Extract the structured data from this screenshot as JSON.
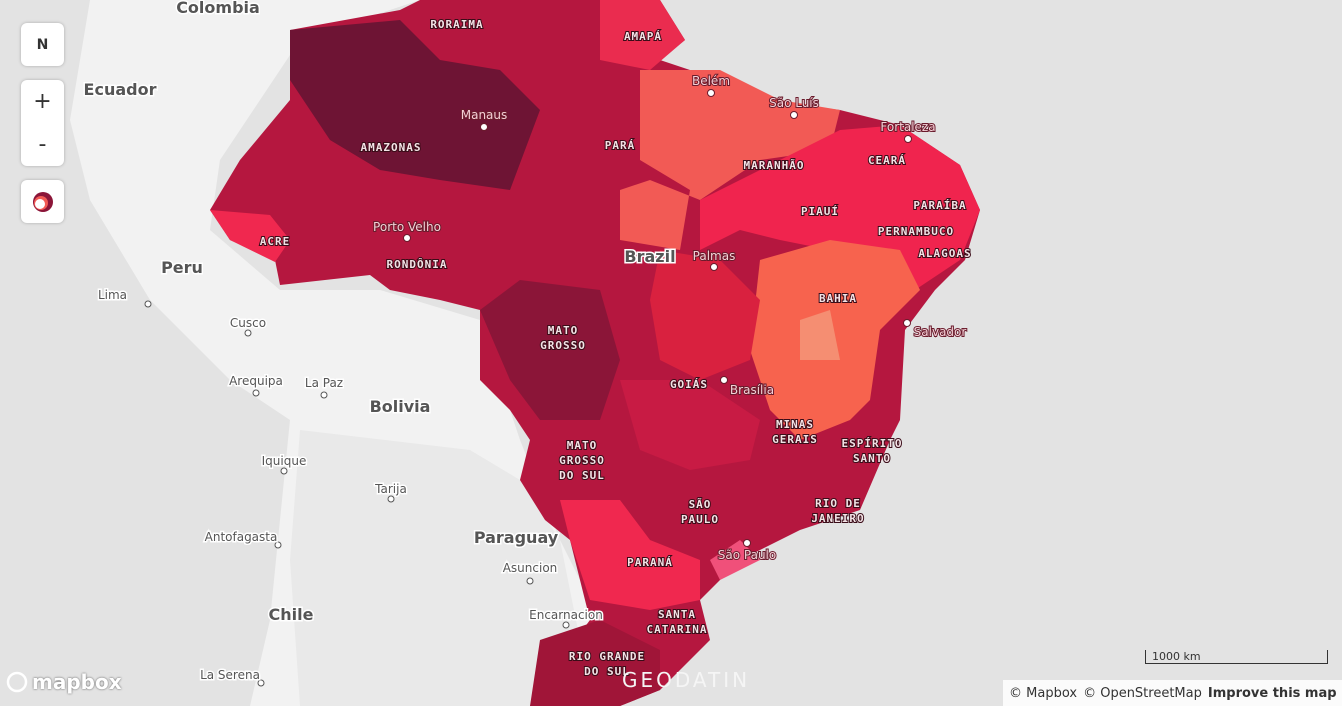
{
  "controls": {
    "compass": "N",
    "zoom_in": "+",
    "zoom_out": "-"
  },
  "countries": [
    "Colombia",
    "Ecuador",
    "Peru",
    "Bolivia",
    "Paraguay",
    "Chile",
    "Brazil"
  ],
  "cities": [
    "Lima",
    "Cusco",
    "Arequipa",
    "La Paz",
    "Iquique",
    "Tarija",
    "Antofagasta",
    "Asuncion",
    "Encarnacion",
    "La Serena"
  ],
  "brazil_cities": [
    "Manaus",
    "Porto Velho",
    "Belém",
    "São Luís",
    "Fortaleza",
    "Palmas",
    "Brasília",
    "Salvador",
    "São Paulo"
  ],
  "states": [
    {
      "lines": [
        "RORAIMA"
      ]
    },
    {
      "lines": [
        "AMAPÁ"
      ]
    },
    {
      "lines": [
        "AMAZONAS"
      ]
    },
    {
      "lines": [
        "PARÁ"
      ]
    },
    {
      "lines": [
        "MARANHÃO"
      ]
    },
    {
      "lines": [
        "CEARÁ"
      ]
    },
    {
      "lines": [
        "PIAUÍ"
      ]
    },
    {
      "lines": [
        "PARAÍBA"
      ]
    },
    {
      "lines": [
        "PERNAMBUCO"
      ]
    },
    {
      "lines": [
        "ACRE"
      ]
    },
    {
      "lines": [
        "RONDÔNIA"
      ]
    },
    {
      "lines": [
        "ALAGOAS"
      ]
    },
    {
      "lines": [
        "BAHIA"
      ]
    },
    {
      "lines": [
        "MATO",
        "GROSSO"
      ]
    },
    {
      "lines": [
        "GOIÁS"
      ]
    },
    {
      "lines": [
        "MINAS",
        "GERAIS"
      ]
    },
    {
      "lines": [
        "ESPÍRITO",
        "SANTO"
      ]
    },
    {
      "lines": [
        "MATO",
        "GROSSO",
        "DO SUL"
      ]
    },
    {
      "lines": [
        "SÃO",
        "PAULO"
      ]
    },
    {
      "lines": [
        "RIO DE",
        "JANEIRO"
      ]
    },
    {
      "lines": [
        "PARANÁ"
      ]
    },
    {
      "lines": [
        "SANTA",
        "CATARINA"
      ]
    },
    {
      "lines": [
        "RIO GRANDE",
        "DO SUL"
      ]
    }
  ],
  "scale": "1000 km",
  "logos": {
    "mapbox": "mapbox",
    "geodatin": "GEODATIN"
  },
  "attribution": {
    "mapbox": "© Mapbox",
    "osm": "© OpenStreetMap",
    "improve": "Improve this map"
  }
}
